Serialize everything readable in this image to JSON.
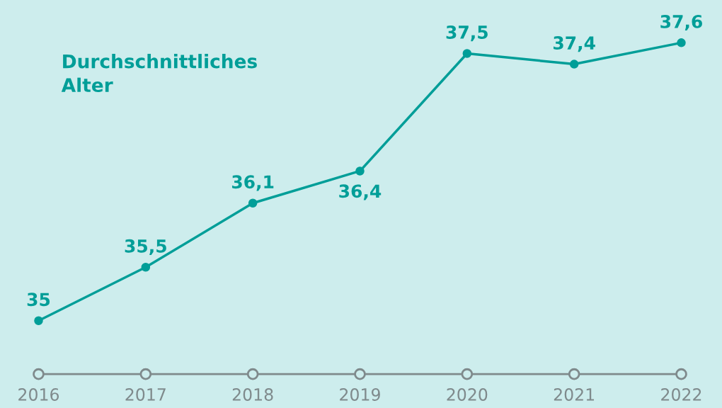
{
  "chart_data": {
    "type": "line",
    "title": "Durchschnittliches\nAlter",
    "categories": [
      "2016",
      "2017",
      "2018",
      "2019",
      "2020",
      "2021",
      "2022"
    ],
    "series": [
      {
        "color": "#009e98",
        "values": [
          35,
          35.5,
          36.1,
          36.4,
          37.5,
          37.4,
          37.6
        ],
        "value_labels": [
          "35",
          "35,5",
          "36,1",
          "36,4",
          "37,5",
          "37,4",
          "37,6"
        ]
      }
    ],
    "ylim": [
      34.5,
      38.0
    ],
    "tick_labels": "x",
    "grid": false,
    "marker": "circle",
    "line_style": "solid"
  }
}
